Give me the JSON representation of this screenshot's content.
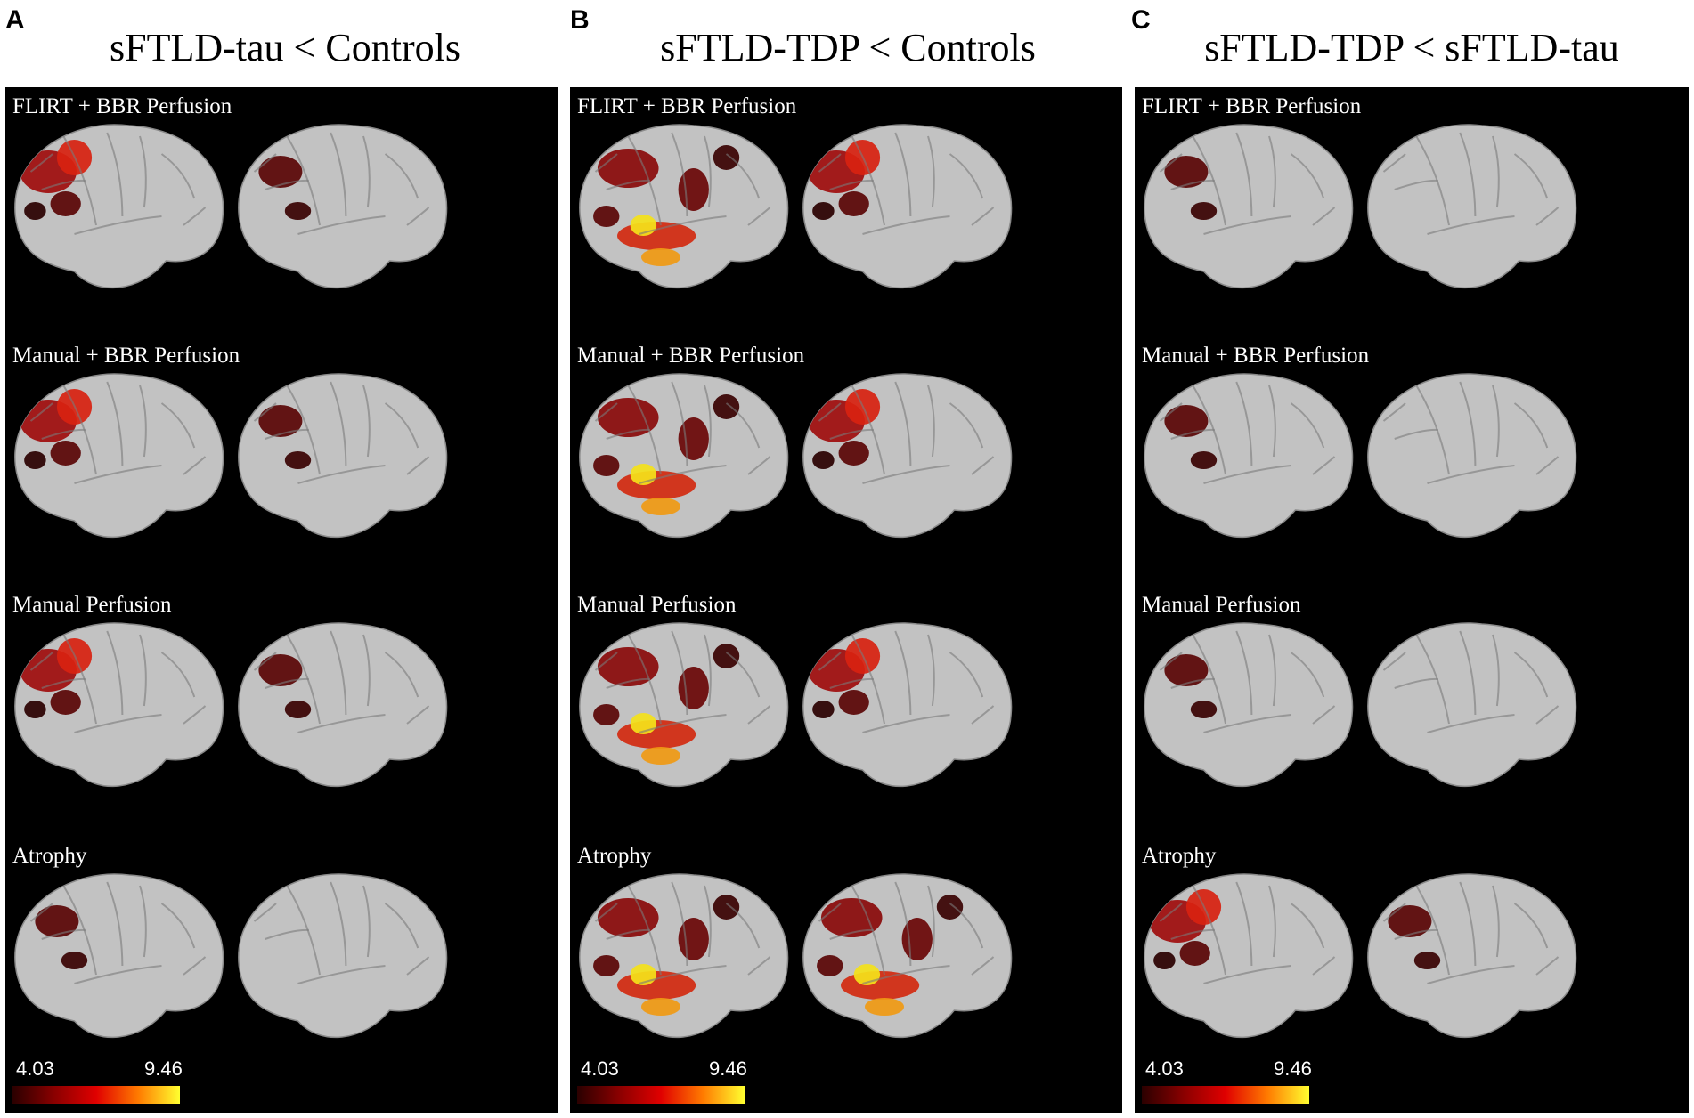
{
  "panels": [
    {
      "letter": "A",
      "title": "sFTLD-tau < Controls",
      "rows": [
        {
          "label": "FLIRT + BBR Perfusion",
          "lateral_intensity": "medium",
          "medial_intensity": "low"
        },
        {
          "label": "Manual + BBR Perfusion",
          "lateral_intensity": "medium",
          "medial_intensity": "low"
        },
        {
          "label": "Manual Perfusion",
          "lateral_intensity": "medium",
          "medial_intensity": "low"
        },
        {
          "label": "Atrophy",
          "lateral_intensity": "low",
          "medial_intensity": "none"
        }
      ],
      "colorbar": {
        "min": "4.03",
        "max": "9.46"
      }
    },
    {
      "letter": "B",
      "title": "sFTLD-TDP < Controls",
      "rows": [
        {
          "label": "FLIRT + BBR Perfusion",
          "lateral_intensity": "high",
          "medial_intensity": "medium"
        },
        {
          "label": "Manual + BBR Perfusion",
          "lateral_intensity": "high",
          "medial_intensity": "medium"
        },
        {
          "label": "Manual Perfusion",
          "lateral_intensity": "high",
          "medial_intensity": "medium"
        },
        {
          "label": "Atrophy",
          "lateral_intensity": "high",
          "medial_intensity": "high"
        }
      ],
      "colorbar": {
        "min": "4.03",
        "max": "9.46"
      }
    },
    {
      "letter": "C",
      "title": "sFTLD-TDP < sFTLD-tau",
      "rows": [
        {
          "label": "FLIRT + BBR Perfusion",
          "lateral_intensity": "low",
          "medial_intensity": "none"
        },
        {
          "label": "Manual + BBR Perfusion",
          "lateral_intensity": "low",
          "medial_intensity": "none"
        },
        {
          "label": "Manual Perfusion",
          "lateral_intensity": "low",
          "medial_intensity": "none"
        },
        {
          "label": "Atrophy",
          "lateral_intensity": "medium",
          "medial_intensity": "low"
        }
      ],
      "colorbar": {
        "min": "4.03",
        "max": "9.46"
      }
    }
  ],
  "colors": {
    "background": "#000000",
    "cortex": "#c2c2c2",
    "scale_low": "#2a0000",
    "scale_mid": "#e00000",
    "scale_high": "#ffff30"
  }
}
